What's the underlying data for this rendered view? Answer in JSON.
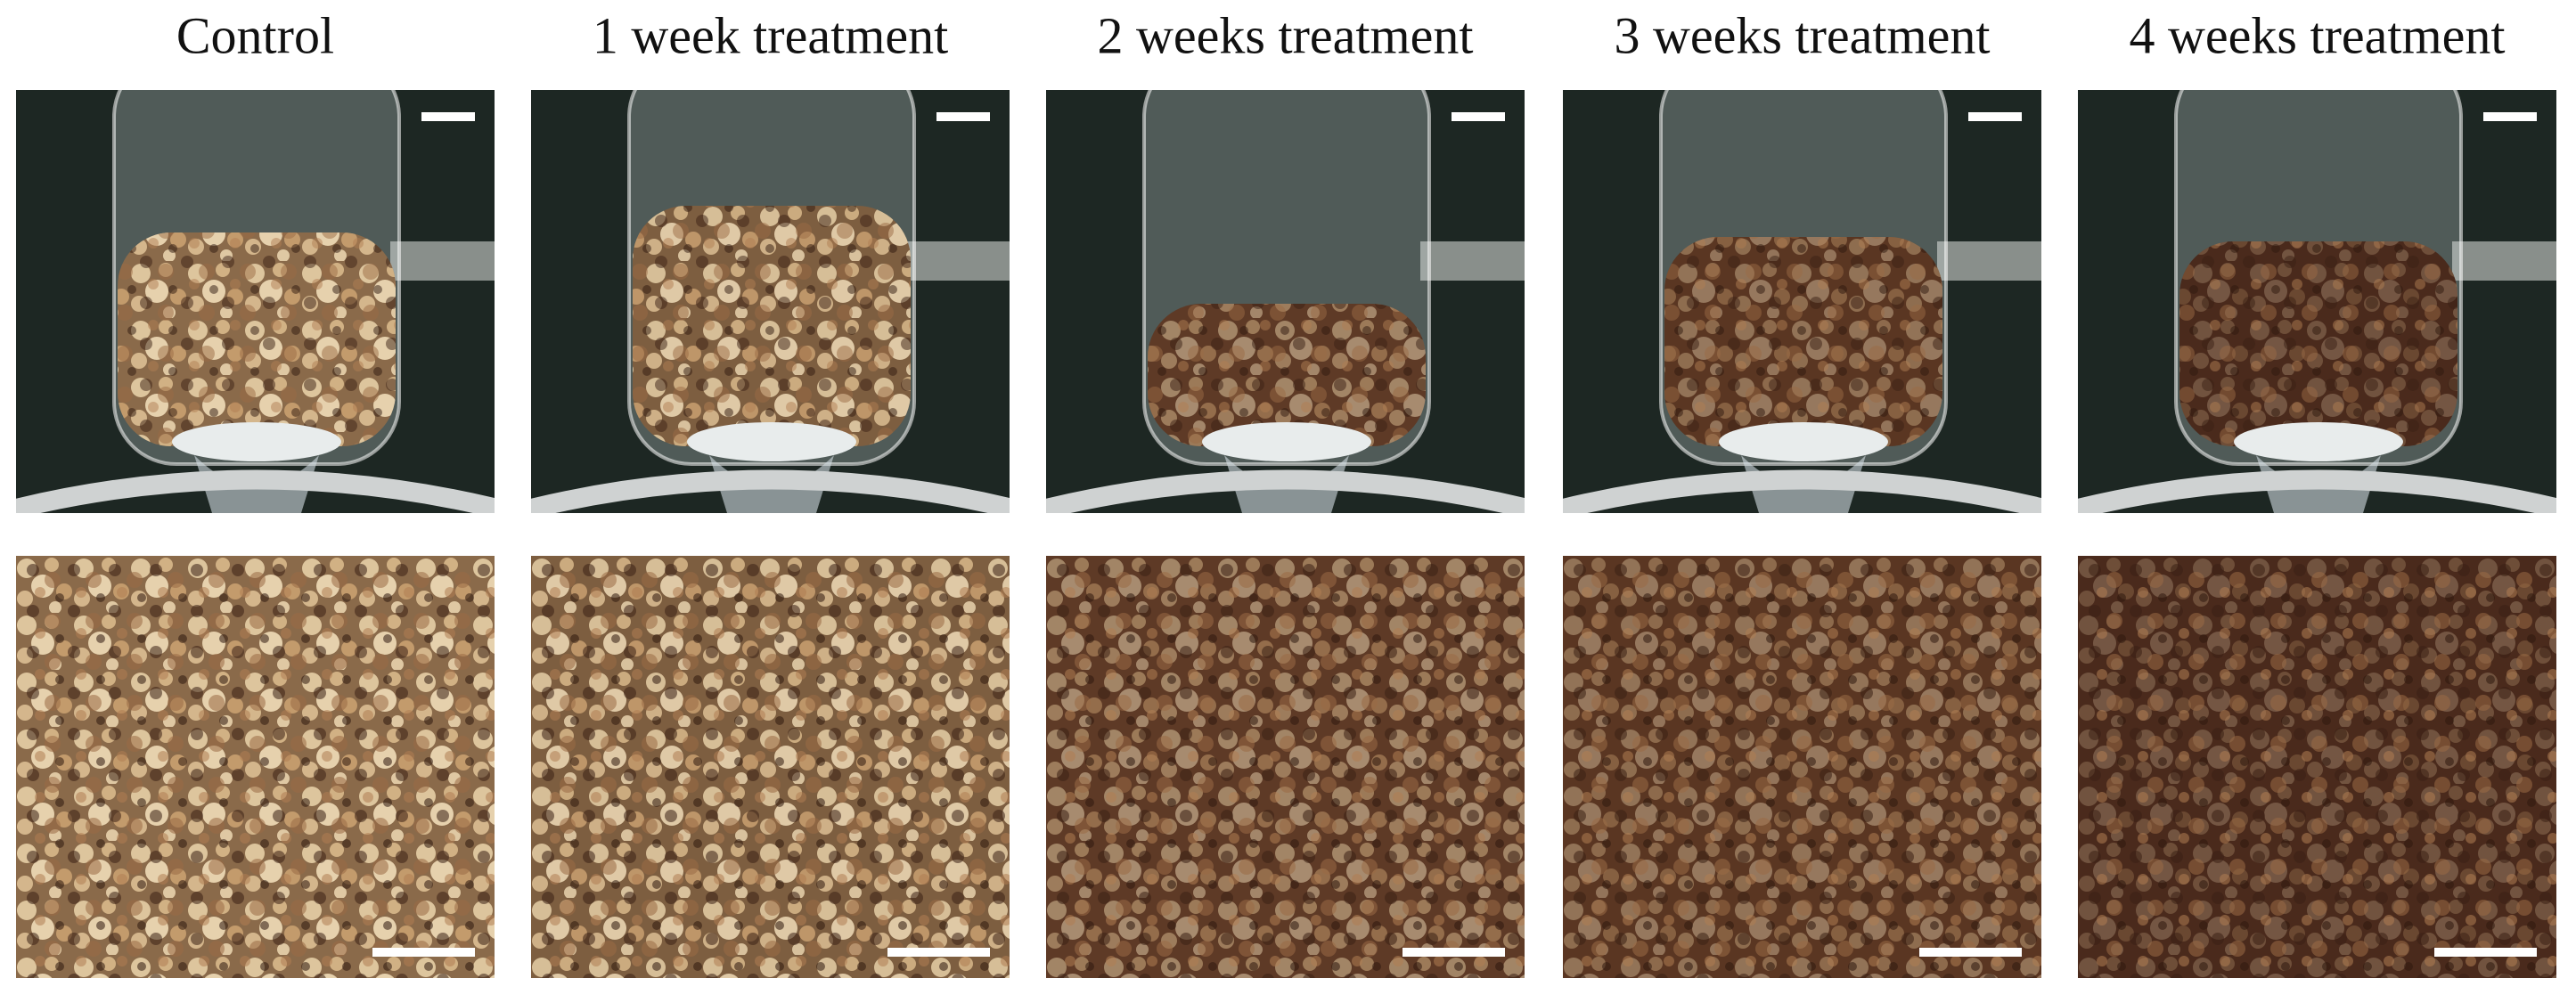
{
  "columns": [
    "Control",
    "1 week treatment",
    "2 weeks treatment",
    "3 weeks treatment",
    "4 weeks treatment"
  ]
}
